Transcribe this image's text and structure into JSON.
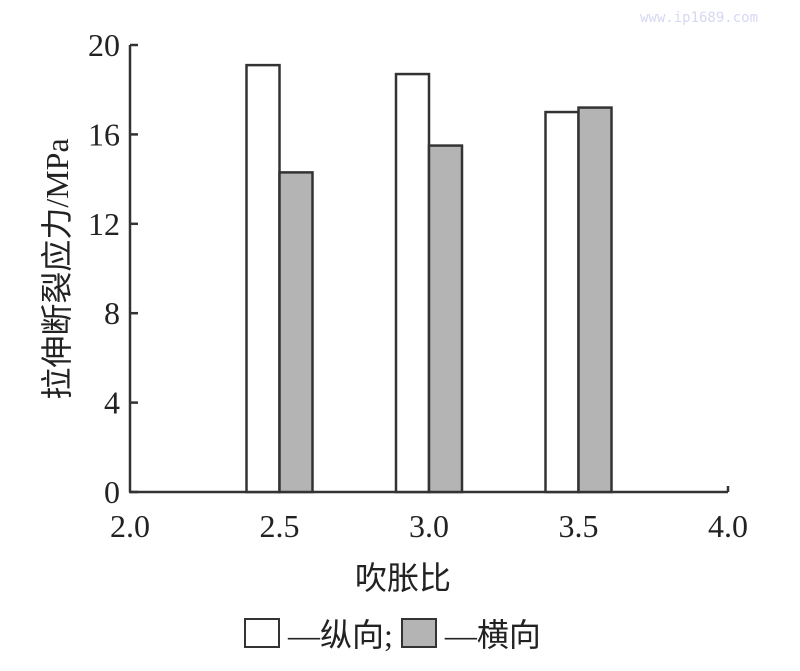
{
  "watermark": "www.ip1689.com",
  "chart_data": {
    "type": "bar",
    "title": "",
    "xlabel": "吹胀比",
    "ylabel": "拉伸断裂应力/MPa",
    "x_ticks": [
      "2.0",
      "2.5",
      "3.0",
      "3.5",
      "4.0"
    ],
    "y_ticks": [
      "0",
      "4",
      "8",
      "12",
      "16",
      "20"
    ],
    "ylim": [
      0,
      20
    ],
    "xlim": [
      2.0,
      4.0
    ],
    "categories": [
      "2.5",
      "3.0",
      "3.5"
    ],
    "series": [
      {
        "name": "纵向",
        "color": "#ffffff",
        "values": [
          19.1,
          18.7,
          17.0
        ]
      },
      {
        "name": "横向",
        "color": "#b4b4b4",
        "values": [
          14.3,
          15.5,
          17.2
        ]
      }
    ],
    "grid": false,
    "legend_position": "bottom",
    "legend": [
      {
        "swatch": "#ffffff",
        "label": "—纵向;"
      },
      {
        "swatch": "#b4b4b4",
        "label": "—横向"
      }
    ]
  }
}
